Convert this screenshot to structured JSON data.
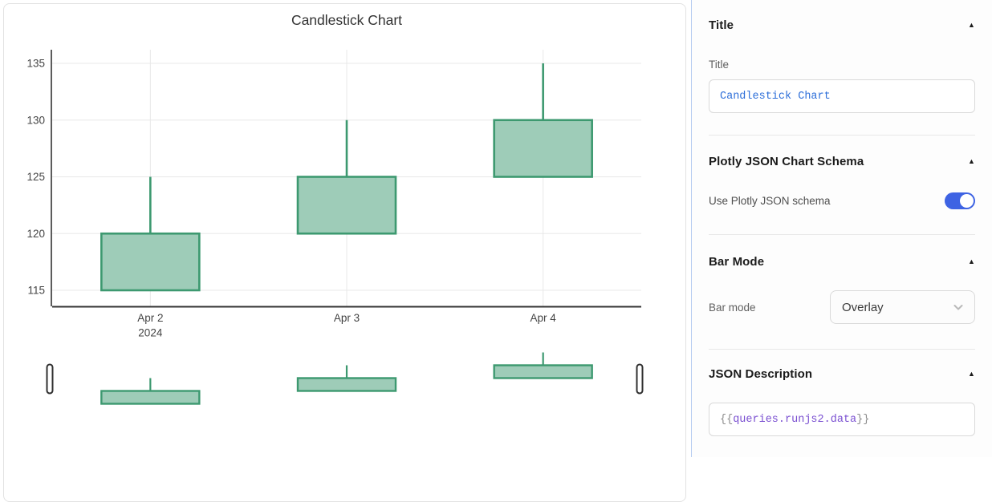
{
  "chart_data": {
    "type": "candlestick",
    "title": "Candlestick Chart",
    "categories": [
      "Apr 2",
      "Apr 3",
      "Apr 4"
    ],
    "x_axis_year": "2024",
    "series": [
      {
        "x": "Apr 2",
        "open": 115,
        "high": 125,
        "low": 115,
        "close": 120
      },
      {
        "x": "Apr 3",
        "open": 120,
        "high": 130,
        "low": 120,
        "close": 125
      },
      {
        "x": "Apr 4",
        "open": 125,
        "high": 135,
        "low": 125,
        "close": 130
      }
    ],
    "yticks": [
      115,
      120,
      125,
      130,
      135
    ],
    "ylim": [
      113.5,
      136.5
    ],
    "grid": true,
    "legend": false,
    "rangeslider": true,
    "increasing_line_color": "#3D9970",
    "increasing_fill_color": "#9ECCB8",
    "axis_color": "#444444",
    "axis_line_color": "#333333",
    "grid_color": "#E8E8E8",
    "title_color": "#333333"
  },
  "inspector": {
    "collapse_icon": "▲",
    "title_section": {
      "header": "Title",
      "field_label": "Title",
      "field_value": "Candlestick Chart"
    },
    "schema_section": {
      "header": "Plotly JSON Chart Schema",
      "toggle_label": "Use Plotly JSON schema",
      "toggle_state": "on"
    },
    "bar_mode_section": {
      "header": "Bar Mode",
      "field_label": "Bar mode",
      "selected_option": "Overlay"
    },
    "json_section": {
      "header": "JSON Description",
      "value_open": "{{",
      "value_token": "queries.runjs2.data",
      "value_close": "}}"
    }
  },
  "colors": {
    "toggle_on": "#3E63E3",
    "input_code_text": "#2E6FD9",
    "token_text": "#7A4FD1",
    "panel_border": "#B7CDF1"
  }
}
